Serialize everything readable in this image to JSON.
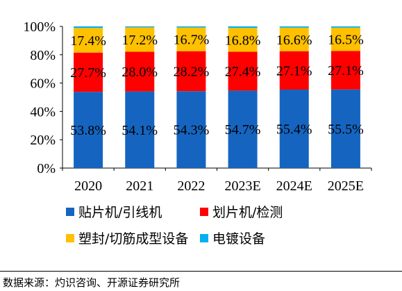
{
  "chart_data": {
    "type": "bar",
    "stacked": true,
    "percent_stacked": true,
    "categories": [
      "2020",
      "2021",
      "2022",
      "2023E",
      "2024E",
      "2025E"
    ],
    "series": [
      {
        "name": "贴片机/引线机",
        "color": "#1565C0",
        "values": [
          53.8,
          54.1,
          54.3,
          54.7,
          55.4,
          55.5
        ],
        "labels": [
          "53.8%",
          "54.1%",
          "54.3%",
          "54.7%",
          "55.4%",
          "55.5%"
        ]
      },
      {
        "name": "划片机/检测",
        "color": "#FF0000",
        "values": [
          27.7,
          28.0,
          28.2,
          27.4,
          27.1,
          27.1
        ],
        "labels": [
          "27.7%",
          "28.0%",
          "28.2%",
          "27.4%",
          "27.1%",
          "27.1%"
        ]
      },
      {
        "name": "塑封/切筋成型设备",
        "color": "#FFC000",
        "values": [
          17.4,
          17.2,
          16.7,
          16.8,
          16.6,
          16.5
        ],
        "labels": [
          "17.4%",
          "17.2%",
          "16.7%",
          "16.8%",
          "16.6%",
          "16.5%"
        ]
      },
      {
        "name": "电镀设备",
        "color": "#00B0F0",
        "values": [
          1.1,
          0.7,
          0.8,
          1.1,
          0.9,
          0.9
        ],
        "labels": [
          "",
          "",
          "",
          "",
          "",
          ""
        ]
      }
    ],
    "y_ticks": [
      "0%",
      "20%",
      "40%",
      "60%",
      "80%",
      "100%"
    ],
    "ylim": [
      0,
      100
    ],
    "grid": false,
    "legend_position": "bottom"
  },
  "source": "数据来源：灼识咨询、开源证券研究所"
}
